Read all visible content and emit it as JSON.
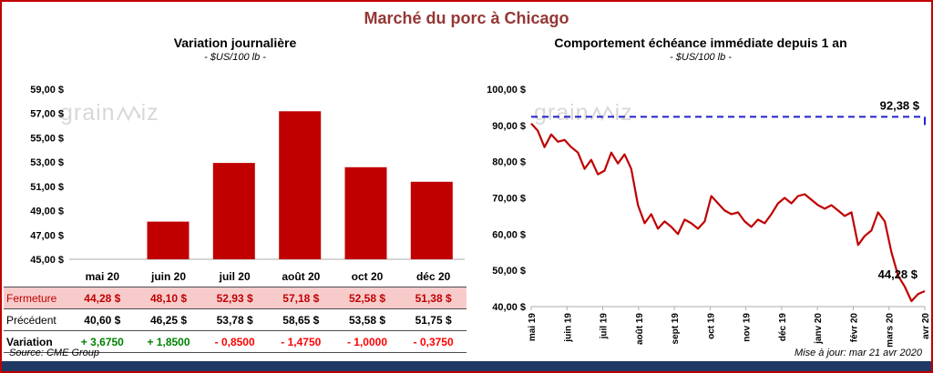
{
  "page": {
    "title": "Marché du porc à Chicago",
    "source": "Source: CME Group",
    "updated": "Mise à jour: mar 21 avr 2020",
    "watermark_part1": "grain",
    "watermark_part2": "iz",
    "colors": {
      "accent_red": "#C00000",
      "title_maroon": "#953735",
      "reference_blue": "#2121CC",
      "footer_navy": "#1F3864",
      "positive_green": "#008000",
      "negative_red": "#FF0000",
      "fermeture_row_bg": "#F8CBCB",
      "watermark_gray": "#D8D8D8"
    }
  },
  "left_panel": {
    "title": "Variation journalière",
    "subtitle": "- $US/100 lb -",
    "table": {
      "columns": [
        "mai 20",
        "juin 20",
        "juil 20",
        "août 20",
        "oct 20",
        "déc 20"
      ],
      "rows": [
        {
          "label": "Fermeture",
          "values": [
            "44,28 $",
            "48,10 $",
            "52,93 $",
            "57,18 $",
            "52,58 $",
            "51,38 $"
          ]
        },
        {
          "label": "Précédent",
          "values": [
            "40,60 $",
            "46,25 $",
            "53,78 $",
            "58,65 $",
            "53,58 $",
            "51,75 $"
          ]
        },
        {
          "label": "Variation",
          "values": [
            "+ 3,6750",
            "+ 1,8500",
            "- 0,8500",
            "- 1,4750",
            "- 1,0000",
            "- 0,3750"
          ],
          "signs": [
            "pos",
            "pos",
            "neg",
            "neg",
            "neg",
            "neg"
          ]
        }
      ]
    }
  },
  "right_panel": {
    "title": "Comportement échéance immédiate depuis 1 an",
    "subtitle": "- $US/100 lb -"
  },
  "chart_data": [
    {
      "type": "bar",
      "title": "Variation journalière",
      "subtitle": "- $US/100 lb -",
      "categories": [
        "mai 20",
        "juin 20",
        "juil 20",
        "août 20",
        "oct 20",
        "déc 20"
      ],
      "values": [
        44.28,
        48.1,
        52.93,
        57.18,
        52.58,
        51.38
      ],
      "ylim": [
        45,
        59
      ],
      "ytick_step": 2,
      "ytick_labels": [
        "45,00 $",
        "47,00 $",
        "49,00 $",
        "51,00 $",
        "53,00 $",
        "55,00 $",
        "57,00 $",
        "59,00 $"
      ],
      "bar_color": "#C00000"
    },
    {
      "type": "line",
      "title": "Comportement échéance immédiate depuis 1 an",
      "subtitle": "- $US/100 lb -",
      "x_labels": [
        "mai 19",
        "juin 19",
        "juil 19",
        "août 19",
        "sept 19",
        "oct 19",
        "nov 19",
        "déc 19",
        "janv 20",
        "févr 20",
        "mars 20",
        "avr 20"
      ],
      "values": [
        90.5,
        88.5,
        84.0,
        87.5,
        85.5,
        86.0,
        84.0,
        82.5,
        78.0,
        80.5,
        76.5,
        77.5,
        82.5,
        79.5,
        82.0,
        78.0,
        68.0,
        63.0,
        65.5,
        61.5,
        63.5,
        62.0,
        60.0,
        64.0,
        63.0,
        61.5,
        63.5,
        70.5,
        68.5,
        66.5,
        65.5,
        66.0,
        63.5,
        62.0,
        64.0,
        63.0,
        65.5,
        68.5,
        70.0,
        68.5,
        70.5,
        71.0,
        69.5,
        68.0,
        67.0,
        68.0,
        66.5,
        65.0,
        66.0,
        57.0,
        59.5,
        61.0,
        66.0,
        63.5,
        55.0,
        48.5,
        45.5,
        41.5,
        43.5,
        44.28
      ],
      "ylim": [
        40,
        100
      ],
      "ytick_step": 10,
      "ytick_labels": [
        "40,00 $",
        "50,00 $",
        "60,00 $",
        "70,00 $",
        "80,00 $",
        "90,00 $",
        "100,00 $"
      ],
      "line_color": "#C00000",
      "ref_line": {
        "value": 92.38,
        "label": "92,38 $",
        "color": "#2121CC"
      },
      "end_label": {
        "value": 44.28,
        "label": "44,28 $"
      }
    }
  ]
}
